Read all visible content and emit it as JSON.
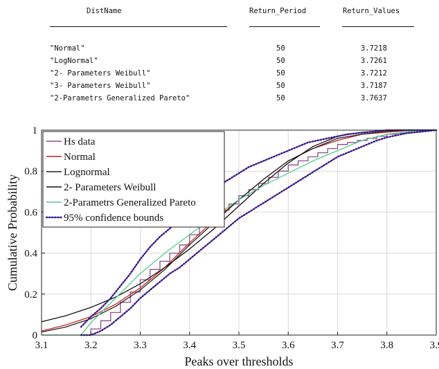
{
  "table": {
    "headers": [
      "DistName",
      "Return_Period",
      "Return_Values"
    ],
    "rows": [
      [
        "\"Normal\"",
        "50",
        "3.7218"
      ],
      [
        "\"LogNormal\"",
        "50",
        "3.7261"
      ],
      [
        "\"2- Parameters Weibull\"",
        "50",
        "3.7212"
      ],
      [
        "\"3- Parameters Weibull\"",
        "50",
        "3.7187"
      ],
      [
        "\"2-Parametrs Generalized Pareto\"",
        "50",
        "3.7637"
      ]
    ]
  },
  "chart_data": {
    "type": "line",
    "title": "",
    "xlabel": "Peaks over thresholds",
    "ylabel": "Cumulative Probability",
    "xlim": [
      3.1,
      3.9
    ],
    "ylim": [
      0,
      1
    ],
    "xticks": [
      "3.1",
      "3.2",
      "3.3",
      "3.4",
      "3.5",
      "3.6",
      "3.7",
      "3.8",
      "3.9"
    ],
    "yticks": [
      "0",
      "0.2",
      "0.4",
      "0.6",
      "0.8",
      "1"
    ],
    "grid": true,
    "legend_position": "top-left",
    "series": [
      {
        "name": "Hs data",
        "color": "#8e4a8e",
        "style": "step",
        "x": [
          3.18,
          3.2,
          3.22,
          3.24,
          3.26,
          3.28,
          3.3,
          3.32,
          3.34,
          3.36,
          3.38,
          3.4,
          3.42,
          3.44,
          3.46,
          3.48,
          3.5,
          3.52,
          3.54,
          3.56,
          3.58,
          3.6,
          3.62,
          3.64,
          3.66,
          3.68,
          3.7,
          3.72,
          3.74,
          3.76,
          3.78,
          3.8,
          3.82,
          3.84,
          3.86,
          3.88,
          3.9
        ],
        "y": [
          0.0,
          0.03,
          0.07,
          0.11,
          0.16,
          0.21,
          0.27,
          0.32,
          0.36,
          0.4,
          0.44,
          0.49,
          0.53,
          0.57,
          0.61,
          0.64,
          0.68,
          0.71,
          0.74,
          0.77,
          0.8,
          0.83,
          0.85,
          0.87,
          0.89,
          0.91,
          0.93,
          0.94,
          0.95,
          0.96,
          0.97,
          0.98,
          0.985,
          0.99,
          0.995,
          1.0,
          1.0
        ]
      },
      {
        "name": "Normal",
        "color": "#cc2222",
        "style": "line",
        "x": [
          3.1,
          3.15,
          3.2,
          3.25,
          3.3,
          3.35,
          3.4,
          3.45,
          3.5,
          3.55,
          3.6,
          3.65,
          3.7,
          3.75,
          3.8,
          3.85,
          3.9
        ],
        "y": [
          0.02,
          0.05,
          0.09,
          0.15,
          0.23,
          0.33,
          0.45,
          0.56,
          0.66,
          0.76,
          0.85,
          0.91,
          0.95,
          0.98,
          0.99,
          1.0,
          1.0
        ]
      },
      {
        "name": "Lognormal",
        "color": "#222222",
        "style": "line",
        "x": [
          3.1,
          3.15,
          3.2,
          3.25,
          3.3,
          3.35,
          3.4,
          3.45,
          3.5,
          3.55,
          3.6,
          3.65,
          3.7,
          3.75,
          3.8,
          3.85,
          3.9
        ],
        "y": [
          0.015,
          0.04,
          0.08,
          0.14,
          0.22,
          0.32,
          0.44,
          0.55,
          0.66,
          0.76,
          0.85,
          0.91,
          0.96,
          0.98,
          0.995,
          1.0,
          1.0
        ]
      },
      {
        "name": "2- Parameters Weibull",
        "color": "#111111",
        "style": "line",
        "x": [
          3.1,
          3.15,
          3.2,
          3.25,
          3.3,
          3.35,
          3.4,
          3.45,
          3.5,
          3.55,
          3.6,
          3.65,
          3.7,
          3.75,
          3.8,
          3.85,
          3.9
        ],
        "y": [
          0.065,
          0.095,
          0.135,
          0.185,
          0.25,
          0.33,
          0.42,
          0.52,
          0.63,
          0.74,
          0.84,
          0.92,
          0.97,
          0.99,
          1.0,
          1.0,
          1.0
        ]
      },
      {
        "name": "2-Parametrs Generalized Pareto",
        "color": "#4fd08a",
        "style": "line",
        "x": [
          3.1,
          3.18,
          3.2,
          3.25,
          3.3,
          3.35,
          3.4,
          3.45,
          3.5,
          3.55,
          3.6,
          3.65,
          3.7,
          3.75,
          3.8,
          3.85,
          3.9
        ],
        "y": [
          0.0,
          0.0,
          0.06,
          0.18,
          0.3,
          0.4,
          0.49,
          0.58,
          0.66,
          0.73,
          0.79,
          0.85,
          0.9,
          0.95,
          0.98,
          0.995,
          1.0
        ]
      },
      {
        "name": "95% confidence bounds",
        "color": "#3a1a8c",
        "style": "dotted",
        "x": [
          3.18,
          3.2,
          3.22,
          3.24,
          3.26,
          3.28,
          3.3,
          3.32,
          3.34,
          3.36,
          3.38,
          3.4,
          3.42,
          3.44,
          3.46,
          3.48,
          3.5,
          3.52,
          3.54,
          3.56,
          3.58,
          3.6,
          3.62,
          3.64,
          3.66,
          3.68,
          3.7,
          3.72,
          3.74,
          3.76,
          3.78,
          3.8,
          3.82,
          3.84,
          3.86,
          3.88,
          3.9
        ],
        "y": [
          0.04,
          0.09,
          0.13,
          0.18,
          0.24,
          0.3,
          0.37,
          0.43,
          0.48,
          0.52,
          0.56,
          0.61,
          0.65,
          0.69,
          0.73,
          0.76,
          0.79,
          0.82,
          0.84,
          0.86,
          0.88,
          0.9,
          0.92,
          0.94,
          0.95,
          0.96,
          0.97,
          0.98,
          0.985,
          0.99,
          0.995,
          1.0,
          1.0,
          1.0,
          1.0,
          1.0,
          1.0
        ]
      },
      {
        "name": "",
        "color": "#3a1a8c",
        "style": "dotted",
        "x": [
          3.18,
          3.2,
          3.22,
          3.24,
          3.26,
          3.28,
          3.3,
          3.32,
          3.34,
          3.36,
          3.38,
          3.4,
          3.42,
          3.44,
          3.46,
          3.48,
          3.5,
          3.52,
          3.54,
          3.56,
          3.58,
          3.6,
          3.62,
          3.64,
          3.66,
          3.68,
          3.7,
          3.72,
          3.74,
          3.76,
          3.78,
          3.8,
          3.82,
          3.84,
          3.86,
          3.88,
          3.9
        ],
        "y": [
          0.0,
          0.0,
          0.02,
          0.05,
          0.09,
          0.13,
          0.18,
          0.22,
          0.26,
          0.3,
          0.33,
          0.37,
          0.41,
          0.45,
          0.49,
          0.53,
          0.57,
          0.6,
          0.63,
          0.66,
          0.69,
          0.72,
          0.75,
          0.78,
          0.81,
          0.84,
          0.87,
          0.89,
          0.91,
          0.93,
          0.95,
          0.965,
          0.975,
          0.985,
          0.99,
          0.995,
          1.0
        ]
      }
    ]
  }
}
